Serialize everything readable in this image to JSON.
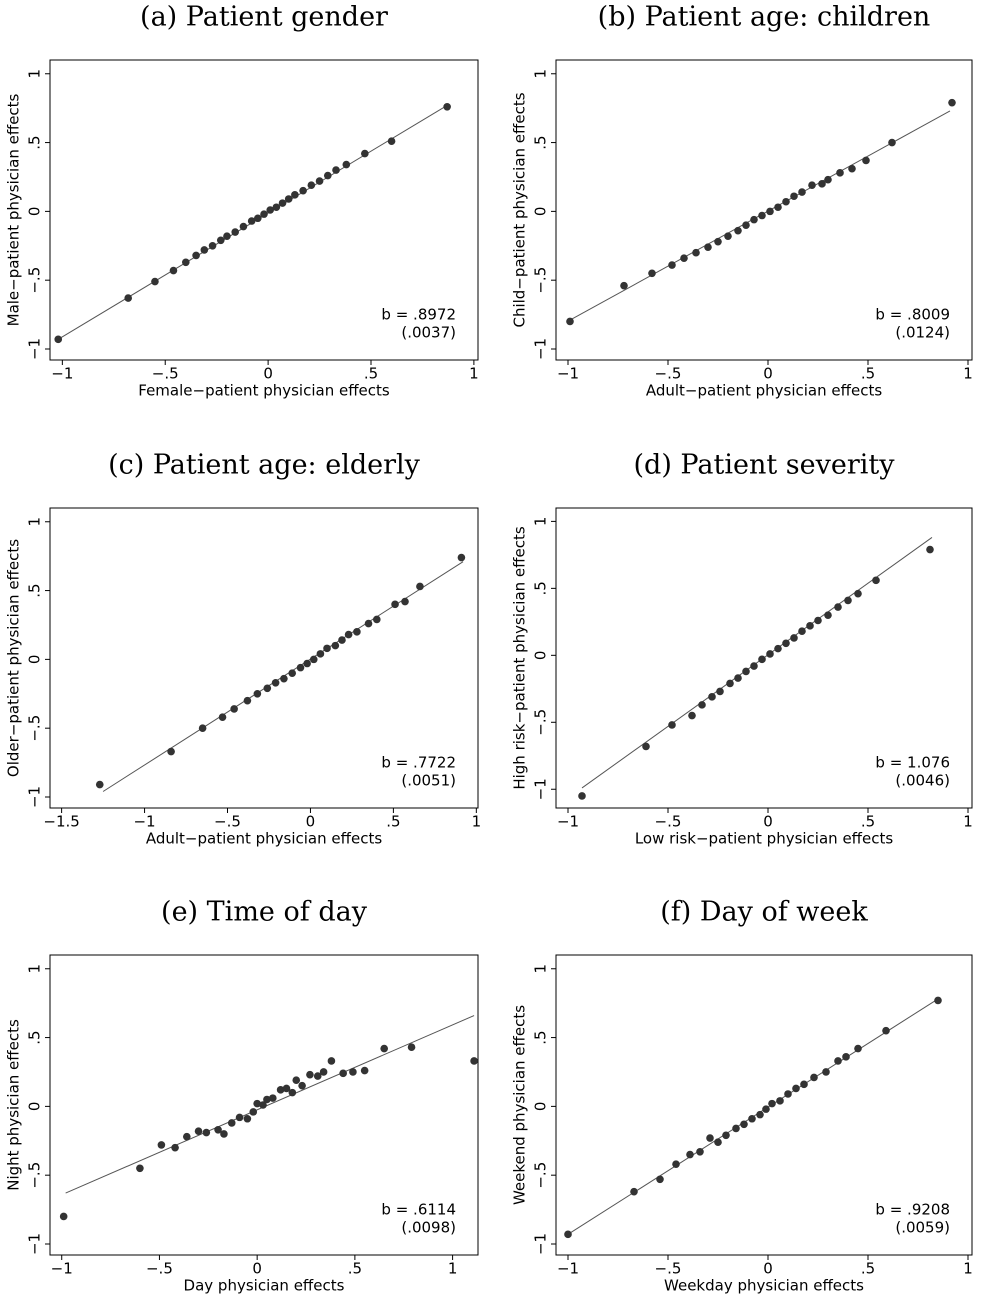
{
  "chart_data": [
    {
      "type": "scatter",
      "title": "(a) Patient gender",
      "xlabel": "Female−patient physician effects",
      "ylabel": "Male−patient physician effects",
      "x": [
        -1.02,
        -0.68,
        -0.55,
        -0.46,
        -0.4,
        -0.35,
        -0.31,
        -0.27,
        -0.23,
        -0.2,
        -0.16,
        -0.12,
        -0.08,
        -0.05,
        -0.02,
        0.01,
        0.04,
        0.07,
        0.1,
        0.13,
        0.17,
        0.21,
        0.25,
        0.29,
        0.33,
        0.38,
        0.47,
        0.6,
        0.87
      ],
      "y": [
        -0.93,
        -0.63,
        -0.51,
        -0.43,
        -0.37,
        -0.32,
        -0.28,
        -0.25,
        -0.21,
        -0.18,
        -0.15,
        -0.11,
        -0.07,
        -0.05,
        -0.02,
        0.01,
        0.03,
        0.06,
        0.09,
        0.12,
        0.15,
        0.19,
        0.22,
        0.26,
        0.3,
        0.34,
        0.42,
        0.51,
        0.76
      ],
      "fit_line": {
        "x": [
          -1.02,
          0.87
        ],
        "y": [
          -0.93,
          0.77
        ]
      },
      "annotations": [
        "b = .8972",
        "(.0037)"
      ],
      "color": "#333333",
      "xlim": [
        -1.06,
        1.02
      ],
      "ylim": [
        -1.08,
        1.1
      ],
      "xticks": [
        {
          "value": -1,
          "label": "−1"
        },
        {
          "value": -0.5,
          "label": "−.5"
        },
        0,
        {
          "value": 0.5,
          "label": ".5"
        },
        1
      ],
      "yticks": [
        {
          "value": -1,
          "label": "−1"
        },
        {
          "value": -0.5,
          "label": "−.5"
        },
        0,
        {
          "value": 0.5,
          "label": ".5"
        },
        1
      ]
    },
    {
      "type": "scatter",
      "title": "(b) Patient age: children",
      "xlabel": "Adult−patient physician effects",
      "ylabel": "Child−patient physician effects",
      "x": [
        -0.99,
        -0.72,
        -0.58,
        -0.48,
        -0.42,
        -0.36,
        -0.3,
        -0.25,
        -0.2,
        -0.15,
        -0.11,
        -0.07,
        -0.03,
        0.01,
        0.05,
        0.09,
        0.13,
        0.17,
        0.22,
        0.27,
        0.3,
        0.36,
        0.42,
        0.49,
        0.62,
        0.92
      ],
      "y": [
        -0.8,
        -0.54,
        -0.45,
        -0.39,
        -0.34,
        -0.3,
        -0.26,
        -0.22,
        -0.18,
        -0.14,
        -0.1,
        -0.06,
        -0.03,
        0.0,
        0.03,
        0.07,
        0.11,
        0.14,
        0.19,
        0.2,
        0.23,
        0.28,
        0.31,
        0.37,
        0.5,
        0.79
      ],
      "fit_line": {
        "x": [
          -0.99,
          0.91
        ],
        "y": [
          -0.79,
          0.73
        ]
      },
      "annotations": [
        "b = .8009",
        "(.0124)"
      ],
      "color": "#333333",
      "xlim": [
        -1.06,
        1.02
      ],
      "ylim": [
        -1.08,
        1.1
      ],
      "xticks": [
        {
          "value": -1,
          "label": "−1"
        },
        {
          "value": -0.5,
          "label": "−.5"
        },
        0,
        {
          "value": 0.5,
          "label": ".5"
        },
        1
      ],
      "yticks": [
        {
          "value": -1,
          "label": "−1"
        },
        {
          "value": -0.5,
          "label": "−.5"
        },
        0,
        {
          "value": 0.5,
          "label": ".5"
        },
        1
      ]
    },
    {
      "type": "scatter",
      "title": "(c) Patient age: elderly",
      "xlabel": "Adult−patient physician effects",
      "ylabel": "Older−patient physician effects",
      "x": [
        -1.27,
        -0.84,
        -0.65,
        -0.53,
        -0.46,
        -0.38,
        -0.32,
        -0.26,
        -0.21,
        -0.16,
        -0.11,
        -0.06,
        -0.02,
        0.02,
        0.06,
        0.1,
        0.15,
        0.19,
        0.23,
        0.28,
        0.35,
        0.4,
        0.51,
        0.57,
        0.66,
        0.91
      ],
      "y": [
        -0.91,
        -0.67,
        -0.5,
        -0.42,
        -0.36,
        -0.3,
        -0.25,
        -0.21,
        -0.17,
        -0.14,
        -0.1,
        -0.06,
        -0.03,
        0.0,
        0.04,
        0.08,
        0.1,
        0.14,
        0.18,
        0.2,
        0.26,
        0.29,
        0.4,
        0.42,
        0.53,
        0.74
      ],
      "fit_line": {
        "x": [
          -1.25,
          0.92
        ],
        "y": [
          -0.96,
          0.71
        ]
      },
      "annotations": [
        "b = .7722",
        "(.0051)"
      ],
      "color": "#333333",
      "xlim": [
        -1.57,
        1.01
      ],
      "ylim": [
        -1.08,
        1.1
      ],
      "xticks": [
        {
          "value": -1.5,
          "label": "−1.5"
        },
        {
          "value": -1,
          "label": "−1"
        },
        {
          "value": -0.5,
          "label": "−.5"
        },
        0,
        {
          "value": 0.5,
          "label": ".5"
        },
        1
      ],
      "yticks": [
        {
          "value": -1,
          "label": "−1"
        },
        {
          "value": -0.5,
          "label": "−.5"
        },
        0,
        {
          "value": 0.5,
          "label": ".5"
        },
        1
      ]
    },
    {
      "type": "scatter",
      "title": "(d) Patient severity",
      "xlabel": "Low risk−patient physician effects",
      "ylabel": "High risk−patient physician effects",
      "x": [
        -0.93,
        -0.61,
        -0.48,
        -0.38,
        -0.33,
        -0.28,
        -0.24,
        -0.19,
        -0.15,
        -0.11,
        -0.07,
        -0.03,
        0.01,
        0.05,
        0.09,
        0.13,
        0.17,
        0.21,
        0.25,
        0.3,
        0.35,
        0.4,
        0.45,
        0.54,
        0.81
      ],
      "y": [
        -1.05,
        -0.68,
        -0.52,
        -0.45,
        -0.37,
        -0.31,
        -0.27,
        -0.21,
        -0.17,
        -0.12,
        -0.08,
        -0.03,
        0.01,
        0.05,
        0.09,
        0.13,
        0.18,
        0.22,
        0.26,
        0.3,
        0.36,
        0.41,
        0.46,
        0.56,
        0.79
      ],
      "fit_line": {
        "x": [
          -0.93,
          0.82
        ],
        "y": [
          -0.99,
          0.88
        ]
      },
      "annotations": [
        "b = 1.076",
        "(.0046)"
      ],
      "color": "#333333",
      "xlim": [
        -1.06,
        1.02
      ],
      "ylim": [
        -1.14,
        1.1
      ],
      "xticks": [
        {
          "value": -1,
          "label": "−1"
        },
        {
          "value": -0.5,
          "label": "−.5"
        },
        0,
        {
          "value": 0.5,
          "label": ".5"
        },
        1
      ],
      "yticks": [
        {
          "value": -1,
          "label": "−1"
        },
        {
          "value": -0.5,
          "label": "−.5"
        },
        0,
        {
          "value": 0.5,
          "label": ".5"
        },
        1
      ]
    },
    {
      "type": "scatter",
      "title": "(e) Time of day",
      "xlabel": "Day physician effects",
      "ylabel": "Night physician effects",
      "x": [
        -0.99,
        -0.6,
        -0.49,
        -0.42,
        -0.36,
        -0.3,
        -0.26,
        -0.2,
        -0.17,
        -0.13,
        -0.09,
        -0.05,
        -0.02,
        0.0,
        0.03,
        0.05,
        0.08,
        0.12,
        0.15,
        0.18,
        0.2,
        0.23,
        0.27,
        0.31,
        0.34,
        0.38,
        0.44,
        0.49,
        0.55,
        0.65,
        0.79,
        1.11
      ],
      "y": [
        -0.8,
        -0.45,
        -0.28,
        -0.3,
        -0.22,
        -0.18,
        -0.19,
        -0.17,
        -0.2,
        -0.12,
        -0.08,
        -0.09,
        -0.04,
        0.02,
        0.01,
        0.05,
        0.06,
        0.12,
        0.13,
        0.1,
        0.19,
        0.15,
        0.23,
        0.22,
        0.25,
        0.33,
        0.24,
        0.25,
        0.26,
        0.42,
        0.43,
        0.33
      ],
      "fit_line": {
        "x": [
          -0.98,
          1.11
        ],
        "y": [
          -0.63,
          0.66
        ]
      },
      "annotations": [
        "b = .6114",
        "(.0098)"
      ],
      "color": "#333333",
      "xlim": [
        -1.06,
        1.13
      ],
      "ylim": [
        -1.08,
        1.1
      ],
      "xticks": [
        {
          "value": -1,
          "label": "−1"
        },
        {
          "value": -0.5,
          "label": "−.5"
        },
        0,
        {
          "value": 0.5,
          "label": ".5"
        },
        1
      ],
      "yticks": [
        {
          "value": -1,
          "label": "−1"
        },
        {
          "value": -0.5,
          "label": "−.5"
        },
        0,
        {
          "value": 0.5,
          "label": ".5"
        },
        1
      ]
    },
    {
      "type": "scatter",
      "title": "(f) Day of week",
      "xlabel": "Weekday physician effects",
      "ylabel": "Weekend physician effects",
      "x": [
        -1.0,
        -0.67,
        -0.54,
        -0.46,
        -0.39,
        -0.34,
        -0.29,
        -0.25,
        -0.21,
        -0.16,
        -0.12,
        -0.08,
        -0.04,
        -0.01,
        0.02,
        0.06,
        0.1,
        0.14,
        0.18,
        0.23,
        0.29,
        0.35,
        0.39,
        0.45,
        0.59,
        0.85
      ],
      "y": [
        -0.93,
        -0.62,
        -0.53,
        -0.42,
        -0.35,
        -0.33,
        -0.23,
        -0.26,
        -0.21,
        -0.16,
        -0.13,
        -0.09,
        -0.06,
        -0.02,
        0.02,
        0.04,
        0.09,
        0.13,
        0.16,
        0.21,
        0.25,
        0.33,
        0.36,
        0.42,
        0.55,
        0.77
      ],
      "fit_line": {
        "x": [
          -1.0,
          0.86
        ],
        "y": [
          -0.93,
          0.79
        ]
      },
      "annotations": [
        "b = .9208",
        "(.0059)"
      ],
      "color": "#333333",
      "xlim": [
        -1.06,
        1.02
      ],
      "ylim": [
        -1.08,
        1.1
      ],
      "xticks": [
        {
          "value": -1,
          "label": "−1"
        },
        {
          "value": -0.5,
          "label": "−.5"
        },
        0,
        {
          "value": 0.5,
          "label": ".5"
        },
        1
      ],
      "yticks": [
        {
          "value": -1,
          "label": "−1"
        },
        {
          "value": -0.5,
          "label": "−.5"
        },
        0,
        {
          "value": 0.5,
          "label": ".5"
        },
        1
      ]
    }
  ]
}
